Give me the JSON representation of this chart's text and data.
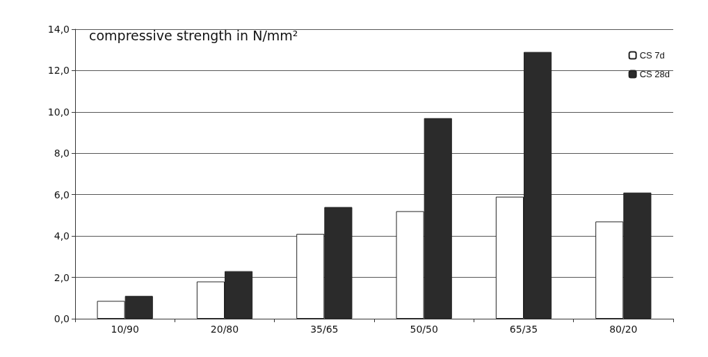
{
  "chart_data": {
    "type": "bar",
    "title": "compressive strength in N/mm²",
    "categories": [
      "10/90",
      "20/80",
      "35/65",
      "50/50",
      "65/35",
      "80/20"
    ],
    "series": [
      {
        "name": "CS 7d",
        "color": "#ffffff",
        "values": [
          0.86,
          1.8,
          4.1,
          5.2,
          5.9,
          4.7
        ]
      },
      {
        "name": "CS 28d",
        "color": "#2b2b2b",
        "values": [
          1.1,
          2.3,
          5.4,
          9.7,
          12.9,
          6.1
        ]
      }
    ],
    "ylim": [
      0,
      14
    ],
    "yticks": [
      {
        "value": 0,
        "label": "0,0"
      },
      {
        "value": 2,
        "label": "2,0"
      },
      {
        "value": 4,
        "label": "4,0"
      },
      {
        "value": 6,
        "label": "6,0"
      },
      {
        "value": 8,
        "label": "8,0"
      },
      {
        "value": 10,
        "label": "10,0"
      },
      {
        "value": 12,
        "label": "12,0"
      },
      {
        "value": 14,
        "label": "14,0"
      }
    ],
    "grid": "y",
    "legend": "top right"
  }
}
